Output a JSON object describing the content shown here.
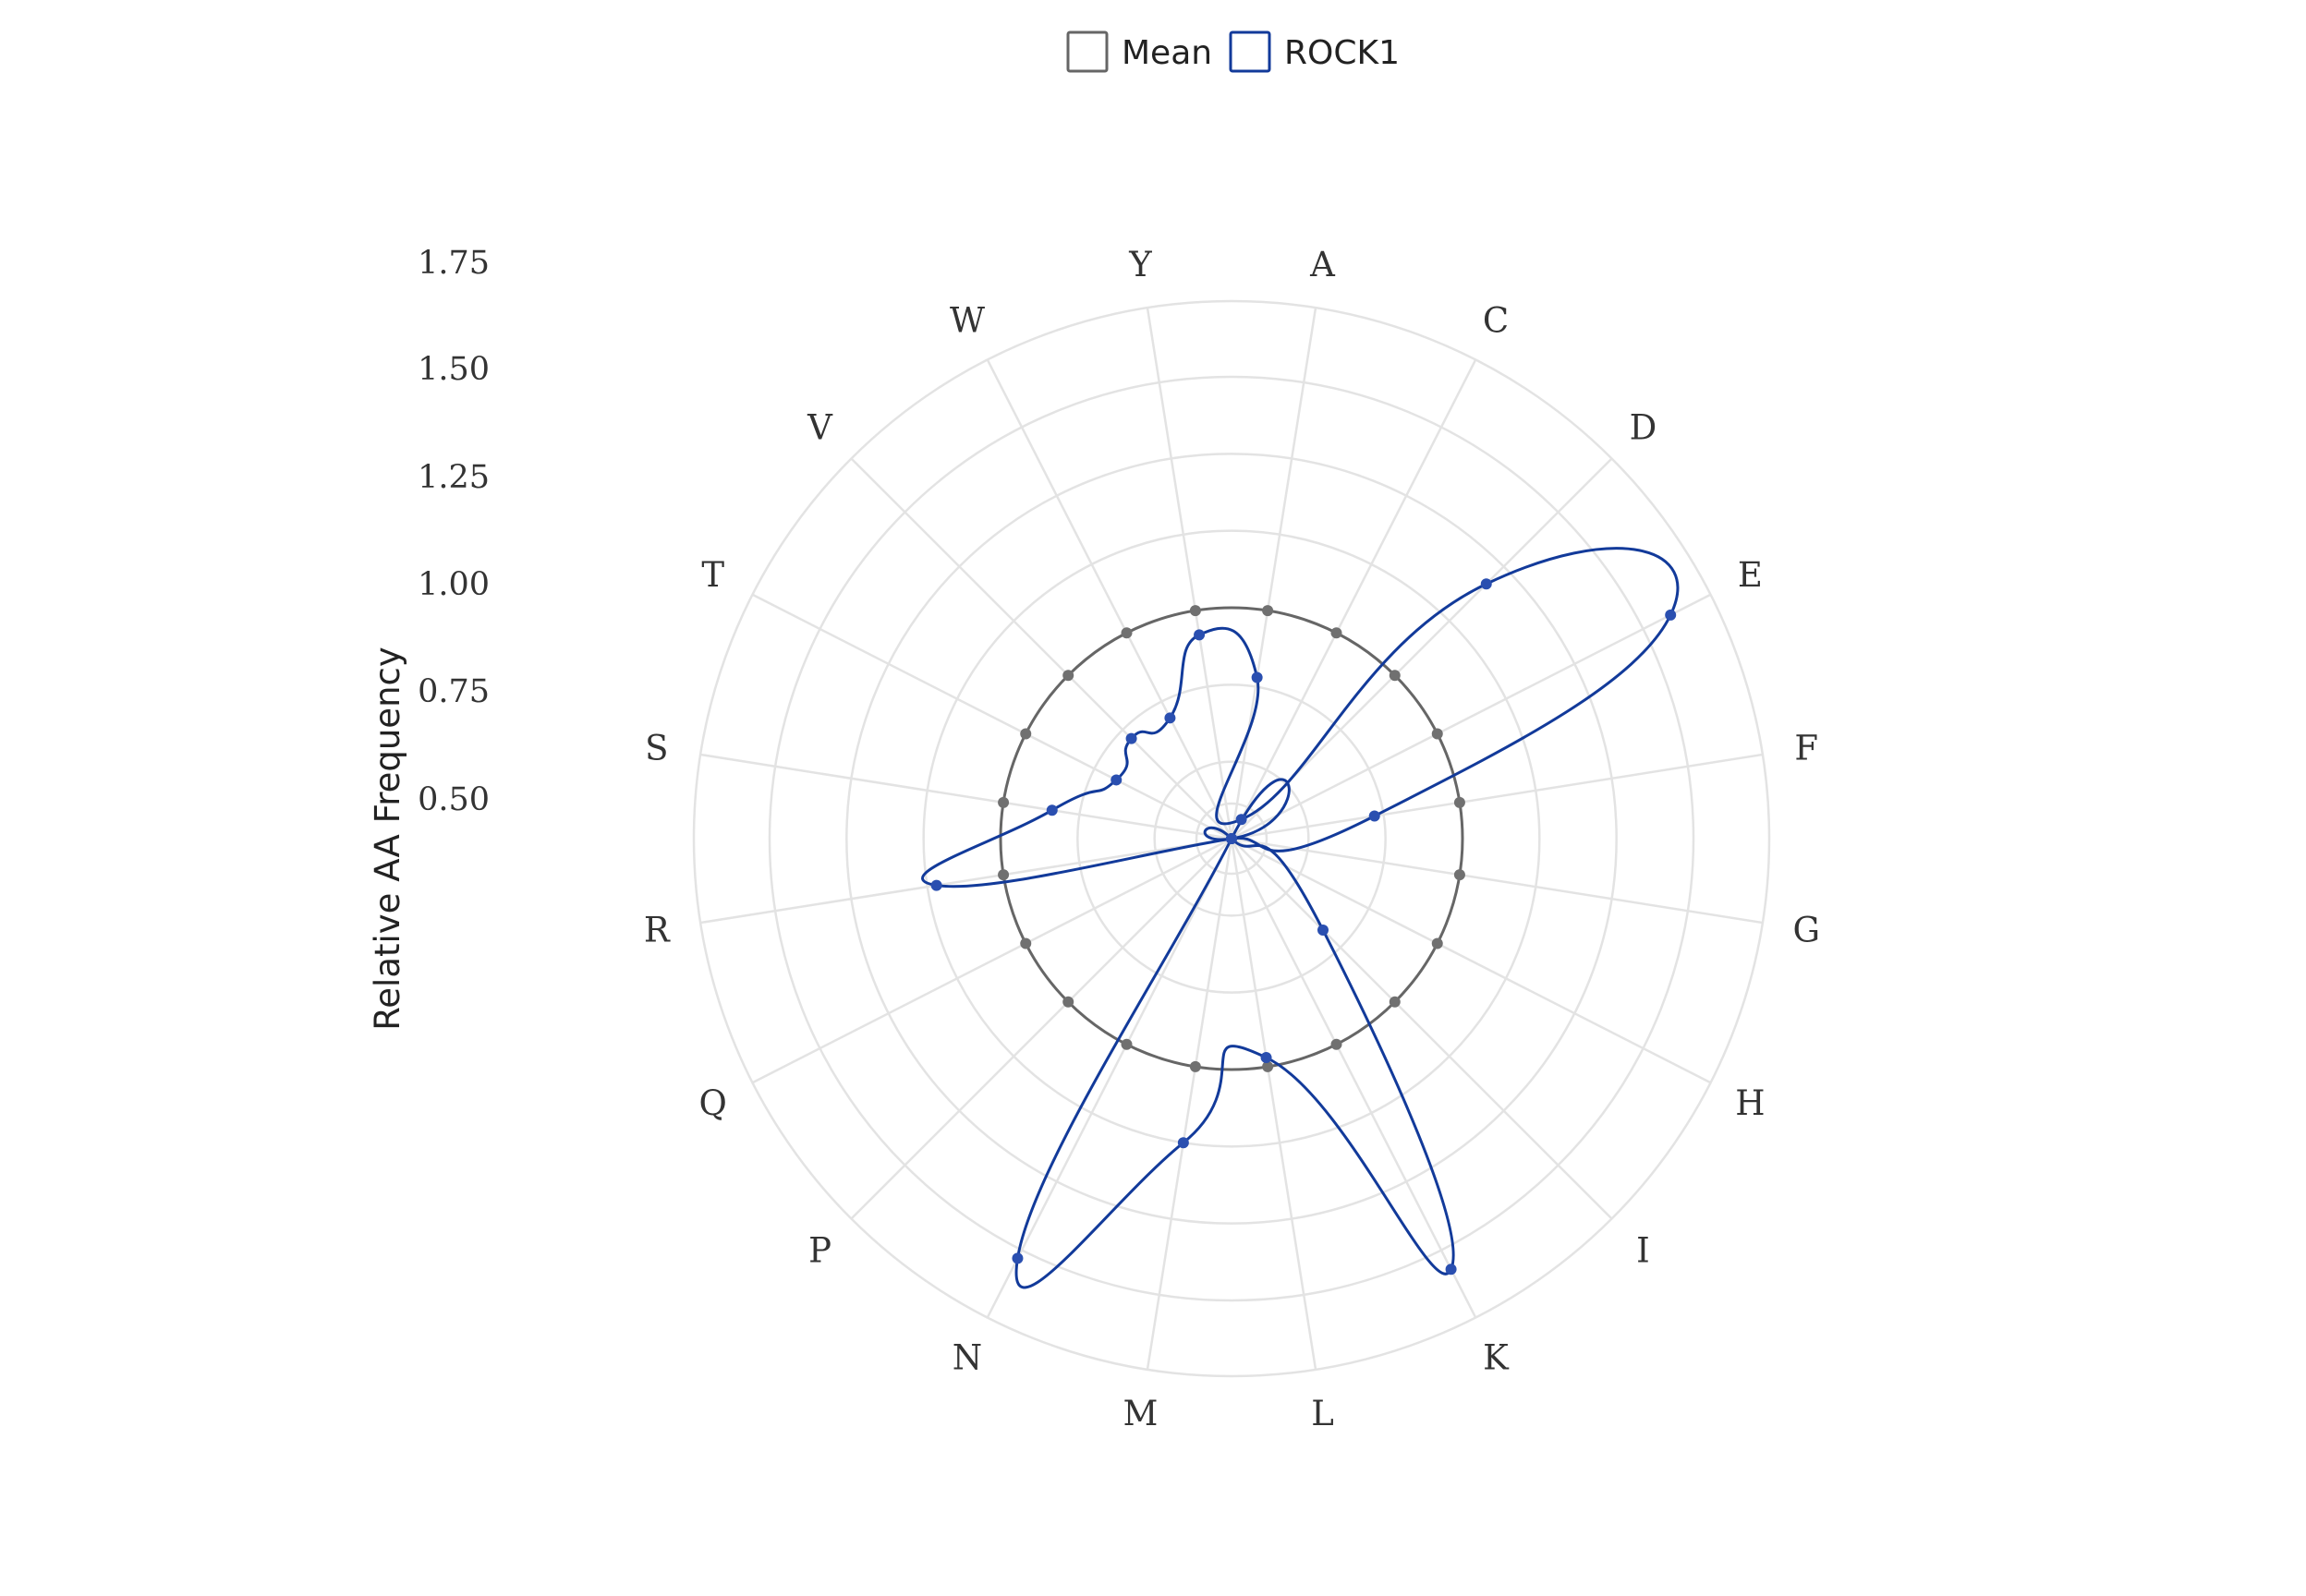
{
  "chart_data": {
    "type": "radar",
    "categories": [
      "A",
      "C",
      "D",
      "E",
      "F",
      "G",
      "H",
      "I",
      "K",
      "L",
      "M",
      "N",
      "P",
      "Q",
      "R",
      "S",
      "T",
      "V",
      "W",
      "Y"
    ],
    "series": [
      {
        "name": "Mean",
        "color": "#666666",
        "values": [
          1,
          1,
          1,
          1,
          1,
          1,
          1,
          1,
          1,
          1,
          1,
          1,
          1,
          1,
          1,
          1,
          1,
          1,
          1,
          1
        ]
      },
      {
        "name": "ROCK1",
        "color": "#123a9a",
        "values": [
          0.78,
          0.32,
          1.42,
          1.85,
          0.72,
          0.12,
          0.12,
          0.67,
          1.82,
          0.97,
          1.25,
          1.78,
          0.12,
          0.12,
          1.22,
          0.84,
          0.67,
          0.71,
          0.69,
          0.92
        ]
      }
    ],
    "rlim": [
      0.25,
      1.75
    ],
    "rticks": [
      0.5,
      0.75,
      1.0,
      1.25,
      1.5,
      1.75
    ],
    "rtick_labels": [
      "0.50",
      "0.75",
      "1.00",
      "1.25",
      "1.50",
      "1.75"
    ],
    "ylabel": "Relative AA Frequency",
    "legend": {
      "placement": "top-center",
      "items": [
        "Mean",
        "ROCK1"
      ]
    },
    "grid": true
  }
}
